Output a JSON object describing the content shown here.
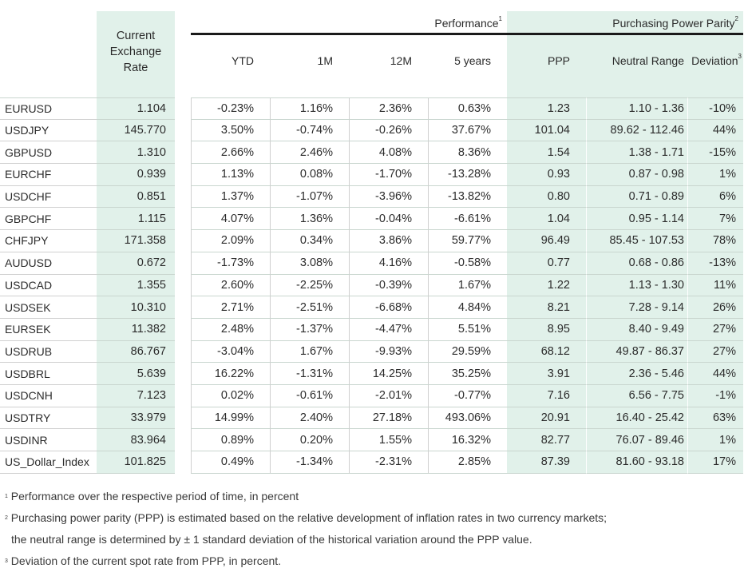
{
  "headers": {
    "current_rate": [
      "Current",
      "Exchange",
      "Rate"
    ],
    "performance_group": "Performance",
    "performance_note_mark": "1",
    "ppp_group": "Purchasing Power Parity",
    "ppp_note_mark": "2",
    "ytd": "YTD",
    "m1": "1M",
    "m12": "12M",
    "y5": "5 years",
    "ppp": "PPP",
    "neutral_range": "Neutral Range",
    "deviation": "Deviation",
    "deviation_note_mark": "3"
  },
  "rows": [
    {
      "name": "EURUSD",
      "rate": "1.104",
      "ytd": "-0.23%",
      "m1": "1.16%",
      "m12": "2.36%",
      "y5": "0.63%",
      "ppp": "1.23",
      "range": "1.10 - 1.36",
      "dev": "-10%"
    },
    {
      "name": "USDJPY",
      "rate": "145.770",
      "ytd": "3.50%",
      "m1": "-0.74%",
      "m12": "-0.26%",
      "y5": "37.67%",
      "ppp": "101.04",
      "range": "89.62 - 112.46",
      "dev": "44%"
    },
    {
      "name": "GBPUSD",
      "rate": "1.310",
      "ytd": "2.66%",
      "m1": "2.46%",
      "m12": "4.08%",
      "y5": "8.36%",
      "ppp": "1.54",
      "range": "1.38 - 1.71",
      "dev": "-15%"
    },
    {
      "name": "EURCHF",
      "rate": "0.939",
      "ytd": "1.13%",
      "m1": "0.08%",
      "m12": "-1.70%",
      "y5": "-13.28%",
      "ppp": "0.93",
      "range": "0.87 - 0.98",
      "dev": "1%"
    },
    {
      "name": "USDCHF",
      "rate": "0.851",
      "ytd": "1.37%",
      "m1": "-1.07%",
      "m12": "-3.96%",
      "y5": "-13.82%",
      "ppp": "0.80",
      "range": "0.71 - 0.89",
      "dev": "6%"
    },
    {
      "name": "GBPCHF",
      "rate": "1.115",
      "ytd": "4.07%",
      "m1": "1.36%",
      "m12": "-0.04%",
      "y5": "-6.61%",
      "ppp": "1.04",
      "range": "0.95 - 1.14",
      "dev": "7%"
    },
    {
      "name": "CHFJPY",
      "rate": "171.358",
      "ytd": "2.09%",
      "m1": "0.34%",
      "m12": "3.86%",
      "y5": "59.77%",
      "ppp": "96.49",
      "range": "85.45 - 107.53",
      "dev": "78%"
    },
    {
      "name": "AUDUSD",
      "rate": "0.672",
      "ytd": "-1.73%",
      "m1": "3.08%",
      "m12": "4.16%",
      "y5": "-0.58%",
      "ppp": "0.77",
      "range": "0.68 - 0.86",
      "dev": "-13%"
    },
    {
      "name": "USDCAD",
      "rate": "1.355",
      "ytd": "2.60%",
      "m1": "-2.25%",
      "m12": "-0.39%",
      "y5": "1.67%",
      "ppp": "1.22",
      "range": "1.13 - 1.30",
      "dev": "11%"
    },
    {
      "name": "USDSEK",
      "rate": "10.310",
      "ytd": "2.71%",
      "m1": "-2.51%",
      "m12": "-6.68%",
      "y5": "4.84%",
      "ppp": "8.21",
      "range": "7.28 - 9.14",
      "dev": "26%"
    },
    {
      "name": "EURSEK",
      "rate": "11.382",
      "ytd": "2.48%",
      "m1": "-1.37%",
      "m12": "-4.47%",
      "y5": "5.51%",
      "ppp": "8.95",
      "range": "8.40 - 9.49",
      "dev": "27%"
    },
    {
      "name": "USDRUB",
      "rate": "86.767",
      "ytd": "-3.04%",
      "m1": "1.67%",
      "m12": "-9.93%",
      "y5": "29.59%",
      "ppp": "68.12",
      "range": "49.87 - 86.37",
      "dev": "27%"
    },
    {
      "name": "USDBRL",
      "rate": "5.639",
      "ytd": "16.22%",
      "m1": "-1.31%",
      "m12": "14.25%",
      "y5": "35.25%",
      "ppp": "3.91",
      "range": "2.36 - 5.46",
      "dev": "44%"
    },
    {
      "name": "USDCNH",
      "rate": "7.123",
      "ytd": "0.02%",
      "m1": "-0.61%",
      "m12": "-2.01%",
      "y5": "-0.77%",
      "ppp": "7.16",
      "range": "6.56 - 7.75",
      "dev": "-1%"
    },
    {
      "name": "USDTRY",
      "rate": "33.979",
      "ytd": "14.99%",
      "m1": "2.40%",
      "m12": "27.18%",
      "y5": "493.06%",
      "ppp": "20.91",
      "range": "16.40 - 25.42",
      "dev": "63%"
    },
    {
      "name": "USDINR",
      "rate": "83.964",
      "ytd": "0.89%",
      "m1": "0.20%",
      "m12": "1.55%",
      "y5": "16.32%",
      "ppp": "82.77",
      "range": "76.07 - 89.46",
      "dev": "1%"
    },
    {
      "name": "US_Dollar_Index",
      "rate": "101.825",
      "ytd": "0.49%",
      "m1": "-1.34%",
      "m12": "-2.31%",
      "y5": "2.85%",
      "ppp": "87.39",
      "range": "81.60 - 93.18",
      "dev": "17%"
    }
  ],
  "footnotes": {
    "n1_mark": "1",
    "n1": "Performance over the respective period of time, in percent",
    "n2_mark": "2",
    "n2_line1": "Purchasing power parity (PPP) is estimated based on the relative development of inflation rates in two currency markets;",
    "n2_line2": "the neutral range is determined by ± 1 standard deviation of the historical variation around the PPP value.",
    "n3_mark": "3",
    "n3": "Deviation of the current spot rate from PPP, in percent."
  },
  "colors": {
    "highlight": "#e1f1ea",
    "rule": "#1a1a1a"
  }
}
